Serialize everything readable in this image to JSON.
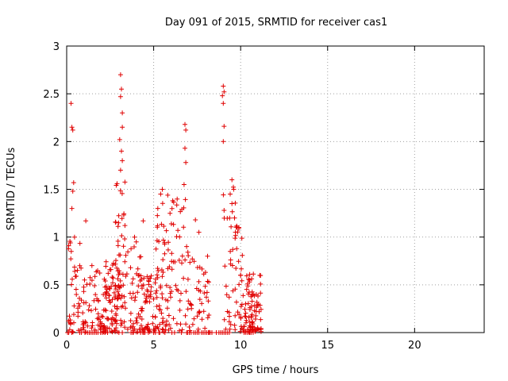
{
  "chart_data": {
    "type": "scatter",
    "title": "Day 091 of 2015, SRMTID for receiver cas1",
    "xlabel": "GPS time / hours",
    "ylabel": "SRMTID / TECUs",
    "xlim": [
      0,
      24
    ],
    "ylim": [
      0,
      3
    ],
    "xticks": [
      0,
      5,
      10,
      15,
      20
    ],
    "xtick_labels": [
      "0",
      "5",
      "10",
      "15",
      "20"
    ],
    "yticks": [
      0,
      0.5,
      1,
      1.5,
      2,
      2.5,
      3
    ],
    "ytick_labels": [
      "0",
      "0.5",
      "1",
      "1.5",
      "2",
      "2.5",
      "3"
    ],
    "grid": true,
    "marker": "+",
    "color": "#e00000",
    "series": [
      {
        "name": "SRMTID",
        "clusters": [
          {
            "x_range": [
              0.1,
              0.9
            ],
            "n": 40,
            "y_max": 1.0
          },
          {
            "x_range": [
              0.9,
              3.0
            ],
            "n": 130,
            "y_max": 0.75
          },
          {
            "x_range": [
              2.8,
              3.4
            ],
            "n": 55,
            "y_max": 1.6
          },
          {
            "x_range": [
              3.4,
              4.3
            ],
            "n": 40,
            "y_max": 0.9
          },
          {
            "x_range": [
              4.2,
              5.2
            ],
            "n": 60,
            "y_max": 0.6
          },
          {
            "x_range": [
              5.1,
              7.0
            ],
            "n": 110,
            "y_max": 1.45
          },
          {
            "x_range": [
              7.0,
              8.2
            ],
            "n": 40,
            "y_max": 0.8
          },
          {
            "x_range": [
              9.0,
              10.1
            ],
            "n": 50,
            "y_max": 1.6
          },
          {
            "x_range": [
              10.0,
              11.2
            ],
            "n": 90,
            "y_max": 0.62
          }
        ],
        "points": [
          {
            "x": 0.25,
            "y": 2.4
          },
          {
            "x": 0.35,
            "y": 2.12
          },
          {
            "x": 0.3,
            "y": 2.15
          },
          {
            "x": 0.4,
            "y": 1.57
          },
          {
            "x": 0.35,
            "y": 1.48
          },
          {
            "x": 0.3,
            "y": 1.3
          },
          {
            "x": 0.45,
            "y": 1.0
          },
          {
            "x": 1.1,
            "y": 1.17
          },
          {
            "x": 3.1,
            "y": 2.7
          },
          {
            "x": 3.15,
            "y": 2.55
          },
          {
            "x": 3.1,
            "y": 2.47
          },
          {
            "x": 3.2,
            "y": 2.3
          },
          {
            "x": 3.2,
            "y": 2.15
          },
          {
            "x": 3.05,
            "y": 2.02
          },
          {
            "x": 3.15,
            "y": 1.9
          },
          {
            "x": 3.2,
            "y": 1.8
          },
          {
            "x": 3.1,
            "y": 1.7
          },
          {
            "x": 3.9,
            "y": 1.0
          },
          {
            "x": 4.0,
            "y": 0.95
          },
          {
            "x": 4.4,
            "y": 1.17
          },
          {
            "x": 5.5,
            "y": 1.5
          },
          {
            "x": 5.4,
            "y": 1.45
          },
          {
            "x": 6.8,
            "y": 2.18
          },
          {
            "x": 6.85,
            "y": 2.12
          },
          {
            "x": 6.8,
            "y": 1.93
          },
          {
            "x": 6.85,
            "y": 1.78
          },
          {
            "x": 6.75,
            "y": 1.55
          },
          {
            "x": 7.4,
            "y": 1.18
          },
          {
            "x": 7.6,
            "y": 1.05
          },
          {
            "x": 8.1,
            "y": 0.8
          },
          {
            "x": 9.0,
            "y": 2.58
          },
          {
            "x": 9.05,
            "y": 2.52
          },
          {
            "x": 8.95,
            "y": 2.48
          },
          {
            "x": 9.0,
            "y": 2.4
          },
          {
            "x": 9.05,
            "y": 2.16
          },
          {
            "x": 9.0,
            "y": 2.0
          },
          {
            "x": 9.05,
            "y": 1.28
          },
          {
            "x": 9.5,
            "y": 1.6
          },
          {
            "x": 9.6,
            "y": 1.5
          },
          {
            "x": 9.4,
            "y": 1.45
          },
          {
            "x": 9.5,
            "y": 1.35
          },
          {
            "x": 9.65,
            "y": 1.2
          },
          {
            "x": 9.7,
            "y": 1.05
          },
          {
            "x": 10.0,
            "y": 0.6
          }
        ],
        "zero_points_x": [
          0.05,
          0.12,
          0.75,
          0.85,
          1.05,
          1.2,
          1.3,
          1.4,
          1.5,
          1.6,
          1.7,
          1.8,
          1.95,
          2.05,
          2.2,
          2.35,
          3.0,
          3.2,
          3.7,
          3.8,
          4.25,
          4.5,
          4.7,
          5.0,
          5.1,
          5.3,
          5.35,
          5.65,
          6.05,
          6.2,
          6.6,
          6.9,
          6.95,
          7.05,
          7.15,
          7.3,
          7.4,
          7.5,
          7.6,
          7.75,
          7.85,
          7.95,
          8.05,
          8.15,
          8.25,
          8.35,
          8.6,
          8.75,
          8.85,
          8.95,
          9.05,
          9.15,
          9.25,
          9.35,
          10.2,
          10.3,
          10.4,
          10.5,
          10.6
        ]
      }
    ]
  }
}
